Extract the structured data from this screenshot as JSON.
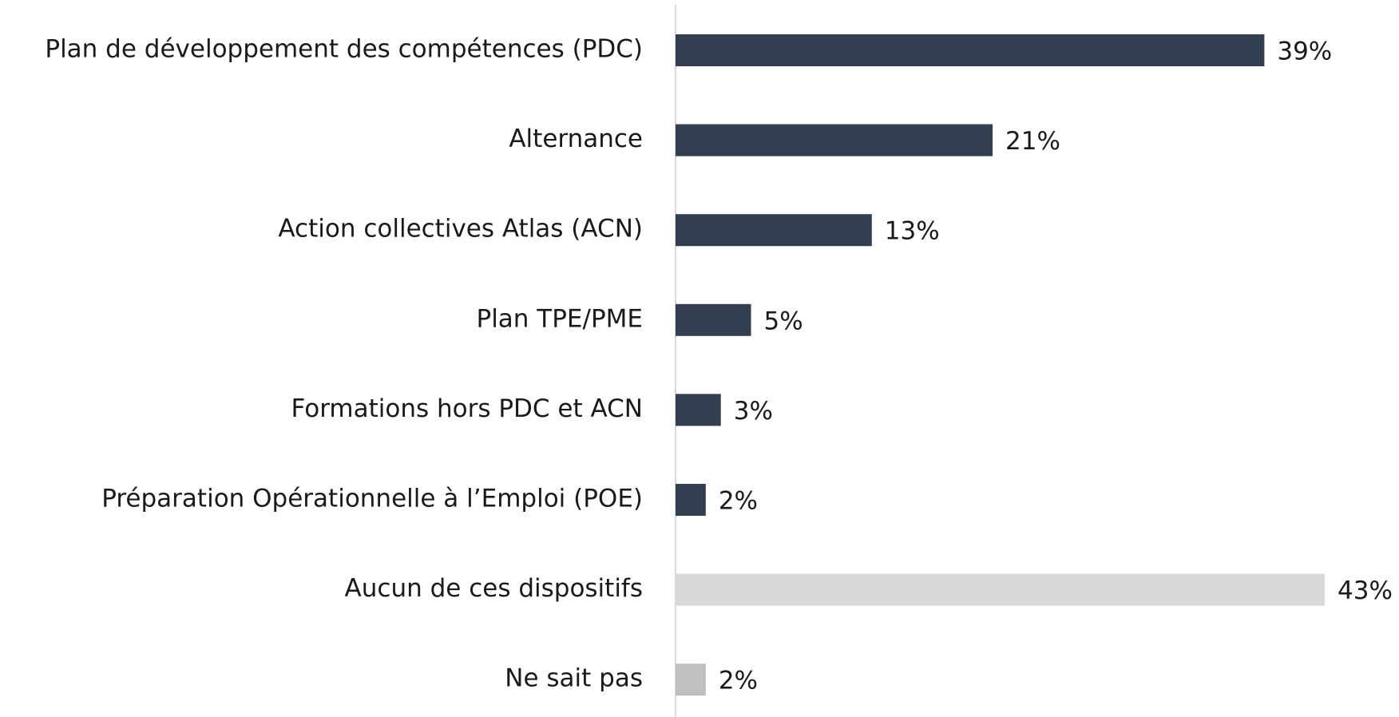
{
  "chart_data": {
    "type": "bar",
    "orientation": "horizontal",
    "categories": [
      "Plan de développement des compétences (PDC)",
      "Alternance",
      "Action collectives Atlas (ACN)",
      "Plan TPE/PME",
      "Formations hors PDC et ACN",
      "Préparation Opérationnelle à l’Emploi (POE)",
      "Aucun de ces dispositifs",
      "Ne sait pas"
    ],
    "values": [
      39,
      21,
      13,
      5,
      3,
      2,
      43,
      2
    ],
    "value_labels": [
      "39%",
      "21%",
      "13%",
      "5%",
      "3%",
      "2%",
      "43%",
      "2%"
    ],
    "colors": [
      "#333f50",
      "#333f50",
      "#333f50",
      "#333f50",
      "#333f50",
      "#333f50",
      "#d9d9d9",
      "#bfbfbf"
    ]
  }
}
